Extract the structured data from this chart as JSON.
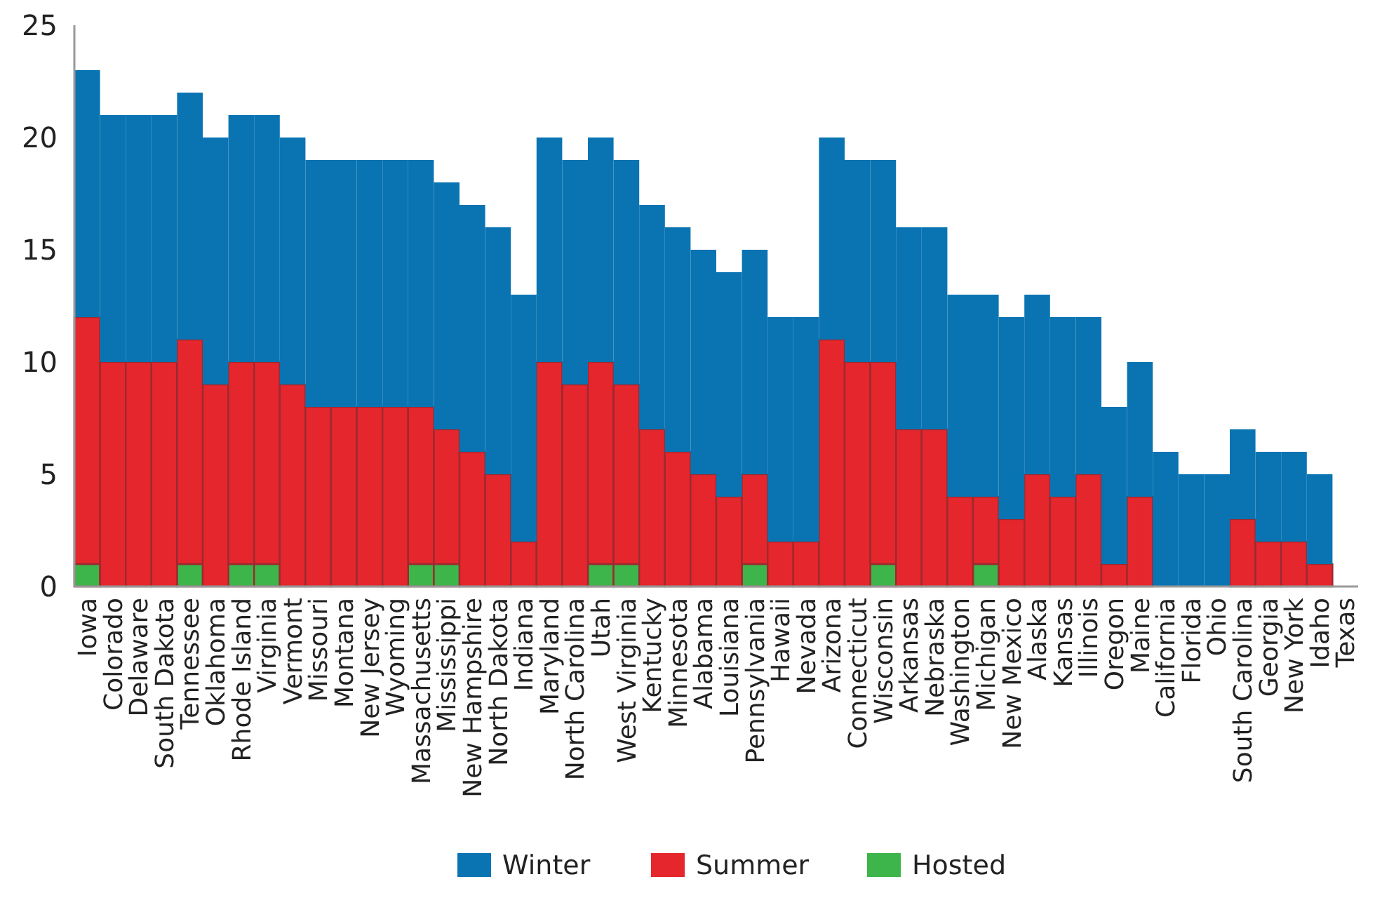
{
  "chart_data": {
    "type": "bar",
    "stacked": true,
    "legend": "bottom",
    "grid": false,
    "categories": [
      "Iowa",
      "Colorado",
      "Delaware",
      "South Dakota",
      "Tennessee",
      "Oklahoma",
      "Rhode Island",
      "Virginia",
      "Vermont",
      "Missouri",
      "Montana",
      "New Jersey",
      "Wyoming",
      "Massachusetts",
      "Mississippi",
      "New Hampshire",
      "North Dakota",
      "Indiana",
      "Maryland",
      "North Carolina",
      "Utah",
      "West Virginia",
      "Kentucky",
      "Minnesota",
      "Alabama",
      "Louisiana",
      "Pennsylvania",
      "Hawaii",
      "Nevada",
      "Arizona",
      "Connecticut",
      "Wisconsin",
      "Arkansas",
      "Nebraska",
      "Washington",
      "Michigan",
      "New Mexico",
      "Alaska",
      "Kansas",
      "Illinois",
      "Oregon",
      "Maine",
      "California",
      "Florida",
      "Ohio",
      "South Carolina",
      "Georgia",
      "New York",
      "Idaho",
      "Texas"
    ],
    "ylim": [
      0,
      25
    ],
    "yticks": [
      0,
      5,
      10,
      15,
      20,
      25
    ],
    "series": [
      {
        "name": "Hosted",
        "color": "#3db54a",
        "values": [
          1,
          0,
          0,
          0,
          1,
          0,
          1,
          1,
          0,
          0,
          0,
          0,
          0,
          1,
          1,
          0,
          0,
          0,
          0,
          0,
          1,
          1,
          0,
          0,
          0,
          0,
          1,
          0,
          0,
          0,
          0,
          1,
          0,
          0,
          0,
          1,
          0,
          0,
          0,
          0,
          0,
          0,
          0,
          0,
          0,
          0,
          0,
          0,
          0,
          0
        ]
      },
      {
        "name": "Summer",
        "color": "#e5262c",
        "values": [
          11,
          10,
          10,
          10,
          10,
          9,
          9,
          9,
          9,
          8,
          8,
          8,
          8,
          7,
          6,
          6,
          5,
          2,
          10,
          9,
          9,
          8,
          7,
          6,
          5,
          4,
          4,
          2,
          2,
          11,
          10,
          9,
          7,
          7,
          4,
          3,
          3,
          5,
          4,
          5,
          1,
          4,
          0,
          0,
          0,
          3,
          2,
          2,
          1,
          0
        ]
      },
      {
        "name": "Winter",
        "color": "#0a74b2",
        "values": [
          11,
          11,
          11,
          11,
          11,
          11,
          11,
          11,
          11,
          11,
          11,
          11,
          11,
          11,
          11,
          11,
          11,
          11,
          10,
          10,
          10,
          10,
          10,
          10,
          10,
          10,
          10,
          10,
          10,
          9,
          9,
          9,
          9,
          9,
          9,
          9,
          9,
          8,
          8,
          7,
          7,
          6,
          6,
          5,
          5,
          4,
          4,
          4,
          4,
          0
        ]
      }
    ]
  }
}
